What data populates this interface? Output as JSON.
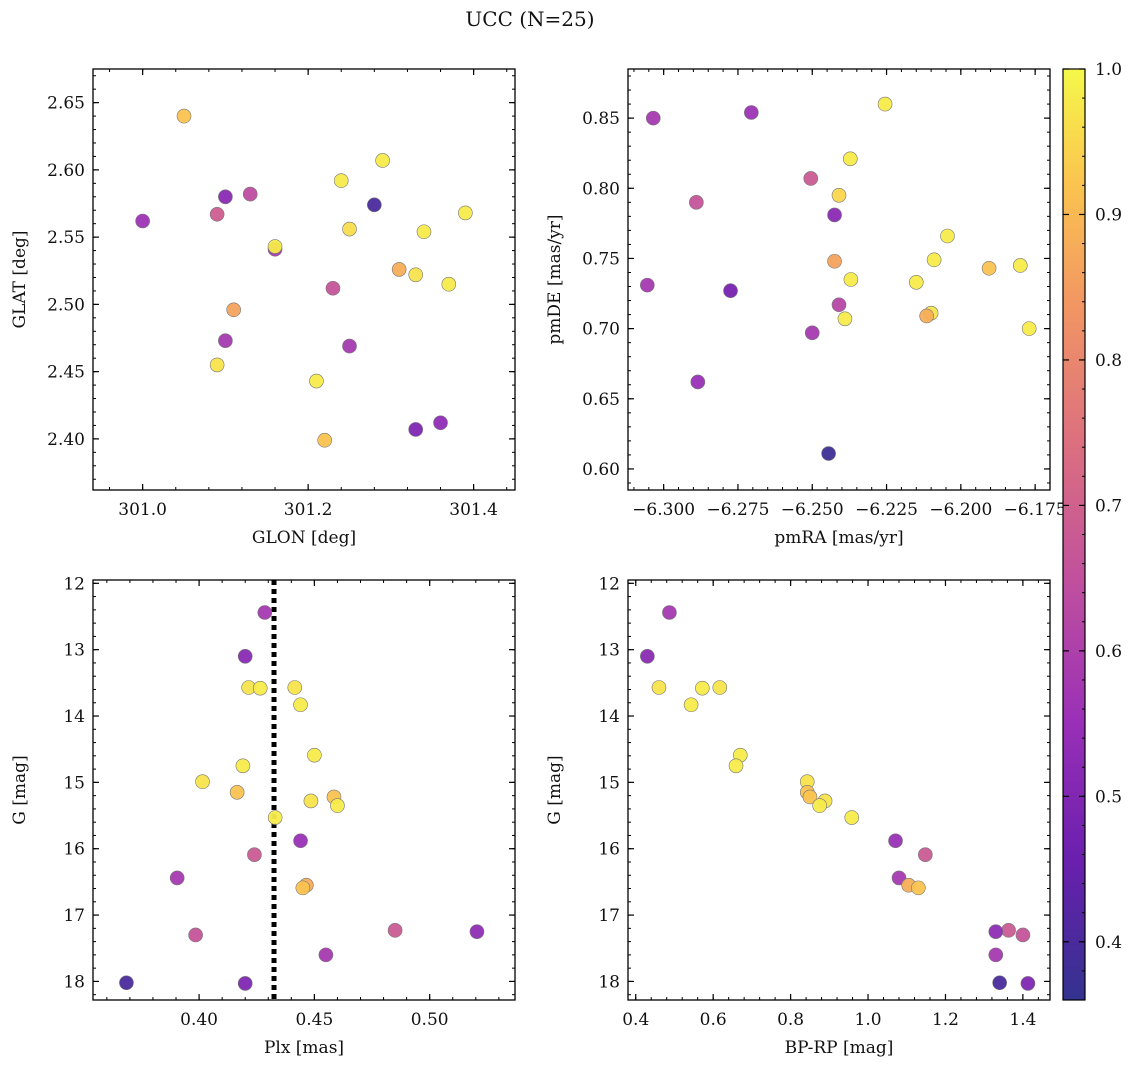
{
  "figure": {
    "title": "UCC (N=25)"
  },
  "colorbar": {
    "range": [
      0.36,
      1.0
    ],
    "ticks": [
      0.4,
      0.5,
      0.6,
      0.7,
      0.8,
      0.9,
      1.0
    ],
    "tick_labels": [
      "0.4",
      "0.5",
      "0.6",
      "0.7",
      "0.8",
      "0.9",
      "1.0"
    ],
    "colormap": "plasma"
  },
  "chart_data": [
    {
      "type": "scatter",
      "id": "glon-glat",
      "xlabel": "GLON [deg]",
      "ylabel": "GLAT [deg]",
      "xlim": [
        300.94,
        301.45
      ],
      "ylim": [
        2.362,
        2.675
      ],
      "xticks": [
        301.0,
        301.2,
        301.4
      ],
      "xtick_labels": [
        "301.0",
        "301.2",
        "301.4"
      ],
      "yticks": [
        2.4,
        2.45,
        2.5,
        2.55,
        2.6,
        2.65
      ],
      "ytick_labels": [
        "2.40",
        "2.45",
        "2.50",
        "2.55",
        "2.60",
        "2.65"
      ],
      "points": [
        {
          "x": 301.05,
          "y": 2.64,
          "c": 0.92
        },
        {
          "x": 301.0,
          "y": 2.562,
          "c": 0.56
        },
        {
          "x": 301.09,
          "y": 2.567,
          "c": 0.69
        },
        {
          "x": 301.1,
          "y": 2.58,
          "c": 0.52
        },
        {
          "x": 301.13,
          "y": 2.582,
          "c": 0.64
        },
        {
          "x": 301.16,
          "y": 2.541,
          "c": 0.58
        },
        {
          "x": 301.16,
          "y": 2.543,
          "c": 0.98
        },
        {
          "x": 301.11,
          "y": 2.496,
          "c": 0.86
        },
        {
          "x": 301.1,
          "y": 2.473,
          "c": 0.58
        },
        {
          "x": 301.09,
          "y": 2.455,
          "c": 0.97
        },
        {
          "x": 301.21,
          "y": 2.443,
          "c": 0.98
        },
        {
          "x": 301.23,
          "y": 2.512,
          "c": 0.66
        },
        {
          "x": 301.22,
          "y": 2.399,
          "c": 0.92
        },
        {
          "x": 301.25,
          "y": 2.469,
          "c": 0.58
        },
        {
          "x": 301.24,
          "y": 2.592,
          "c": 0.98
        },
        {
          "x": 301.25,
          "y": 2.556,
          "c": 0.96
        },
        {
          "x": 301.28,
          "y": 2.574,
          "c": 0.4
        },
        {
          "x": 301.29,
          "y": 2.607,
          "c": 0.98
        },
        {
          "x": 301.31,
          "y": 2.526,
          "c": 0.88
        },
        {
          "x": 301.33,
          "y": 2.522,
          "c": 0.97
        },
        {
          "x": 301.34,
          "y": 2.554,
          "c": 0.98
        },
        {
          "x": 301.33,
          "y": 2.407,
          "c": 0.5
        },
        {
          "x": 301.36,
          "y": 2.412,
          "c": 0.53
        },
        {
          "x": 301.37,
          "y": 2.515,
          "c": 0.98
        },
        {
          "x": 301.39,
          "y": 2.568,
          "c": 0.98
        }
      ]
    },
    {
      "type": "scatter",
      "id": "pmra-pmde",
      "xlabel": "pmRA [mas/yr]",
      "ylabel": "pmDE [mas/yr]",
      "xlim": [
        -6.312,
        -6.17
      ],
      "ylim": [
        0.585,
        0.885
      ],
      "xticks": [
        -6.3,
        -6.275,
        -6.25,
        -6.225,
        -6.2,
        -6.175
      ],
      "xtick_labels": [
        "−6.300",
        "−6.275",
        "−6.250",
        "−6.225",
        "−6.200",
        "−6.175"
      ],
      "yticks": [
        0.6,
        0.65,
        0.7,
        0.75,
        0.8,
        0.85
      ],
      "ytick_labels": [
        "0.60",
        "0.65",
        "0.70",
        "0.75",
        "0.80",
        "0.85"
      ],
      "points": [
        {
          "x": -6.3035,
          "y": 0.85,
          "c": 0.58
        },
        {
          "x": -6.2705,
          "y": 0.854,
          "c": 0.56
        },
        {
          "x": -6.2255,
          "y": 0.86,
          "c": 0.98
        },
        {
          "x": -6.2505,
          "y": 0.807,
          "c": 0.68
        },
        {
          "x": -6.289,
          "y": 0.79,
          "c": 0.66
        },
        {
          "x": -6.2372,
          "y": 0.821,
          "c": 0.98
        },
        {
          "x": -6.241,
          "y": 0.795,
          "c": 0.95
        },
        {
          "x": -6.2425,
          "y": 0.781,
          "c": 0.52
        },
        {
          "x": -6.2045,
          "y": 0.766,
          "c": 0.98
        },
        {
          "x": -6.3055,
          "y": 0.731,
          "c": 0.58
        },
        {
          "x": -6.2775,
          "y": 0.727,
          "c": 0.48
        },
        {
          "x": -6.2425,
          "y": 0.748,
          "c": 0.86
        },
        {
          "x": -6.237,
          "y": 0.735,
          "c": 0.98
        },
        {
          "x": -6.209,
          "y": 0.749,
          "c": 0.98
        },
        {
          "x": -6.215,
          "y": 0.733,
          "c": 0.98
        },
        {
          "x": -6.1905,
          "y": 0.743,
          "c": 0.92
        },
        {
          "x": -6.18,
          "y": 0.745,
          "c": 0.98
        },
        {
          "x": -6.241,
          "y": 0.717,
          "c": 0.62
        },
        {
          "x": -6.25,
          "y": 0.697,
          "c": 0.58
        },
        {
          "x": -6.21,
          "y": 0.711,
          "c": 0.97
        },
        {
          "x": -6.2115,
          "y": 0.709,
          "c": 0.88
        },
        {
          "x": -6.239,
          "y": 0.707,
          "c": 0.98
        },
        {
          "x": -6.177,
          "y": 0.7,
          "c": 0.98
        },
        {
          "x": -6.2885,
          "y": 0.662,
          "c": 0.55
        },
        {
          "x": -6.2445,
          "y": 0.611,
          "c": 0.38
        }
      ]
    },
    {
      "type": "scatter",
      "id": "plx-g",
      "xlabel": "Plx [mas]",
      "ylabel": "G [mag]",
      "xlim": [
        0.354,
        0.537
      ],
      "ylim": [
        18.28,
        11.95
      ],
      "y_inverted": true,
      "xticks": [
        0.4,
        0.45,
        0.5
      ],
      "xtick_labels": [
        "0.40",
        "0.45",
        "0.50"
      ],
      "yticks": [
        12,
        13,
        14,
        15,
        16,
        17,
        18
      ],
      "ytick_labels": [
        "12",
        "13",
        "14",
        "15",
        "16",
        "17",
        "18"
      ],
      "vline": 0.4325,
      "points": [
        {
          "x": 0.4285,
          "y": 12.44,
          "c": 0.58
        },
        {
          "x": 0.42,
          "y": 13.1,
          "c": 0.52
        },
        {
          "x": 0.4215,
          "y": 13.57,
          "c": 0.97
        },
        {
          "x": 0.4265,
          "y": 13.58,
          "c": 0.98
        },
        {
          "x": 0.4415,
          "y": 13.57,
          "c": 0.97
        },
        {
          "x": 0.444,
          "y": 13.83,
          "c": 0.98
        },
        {
          "x": 0.45,
          "y": 14.59,
          "c": 0.98
        },
        {
          "x": 0.419,
          "y": 14.75,
          "c": 0.98
        },
        {
          "x": 0.4015,
          "y": 14.99,
          "c": 0.97
        },
        {
          "x": 0.4165,
          "y": 15.15,
          "c": 0.92
        },
        {
          "x": 0.4585,
          "y": 15.22,
          "c": 0.92
        },
        {
          "x": 0.4485,
          "y": 15.28,
          "c": 0.97
        },
        {
          "x": 0.46,
          "y": 15.35,
          "c": 0.98
        },
        {
          "x": 0.433,
          "y": 15.53,
          "c": 0.98
        },
        {
          "x": 0.444,
          "y": 15.88,
          "c": 0.55
        },
        {
          "x": 0.424,
          "y": 16.09,
          "c": 0.68
        },
        {
          "x": 0.3905,
          "y": 16.44,
          "c": 0.58
        },
        {
          "x": 0.4465,
          "y": 16.55,
          "c": 0.88
        },
        {
          "x": 0.445,
          "y": 16.59,
          "c": 0.92
        },
        {
          "x": 0.485,
          "y": 17.23,
          "c": 0.68
        },
        {
          "x": 0.5205,
          "y": 17.25,
          "c": 0.53
        },
        {
          "x": 0.3985,
          "y": 17.3,
          "c": 0.66
        },
        {
          "x": 0.455,
          "y": 17.6,
          "c": 0.58
        },
        {
          "x": 0.3685,
          "y": 18.02,
          "c": 0.4
        },
        {
          "x": 0.42,
          "y": 18.03,
          "c": 0.5
        }
      ]
    },
    {
      "type": "scatter",
      "id": "bprp-g",
      "xlabel": "BP-RP [mag]",
      "ylabel": "G [mag]",
      "xlim": [
        0.38,
        1.47
      ],
      "ylim": [
        18.28,
        11.95
      ],
      "y_inverted": true,
      "xticks": [
        0.4,
        0.6,
        0.8,
        1.0,
        1.2,
        1.4
      ],
      "xtick_labels": [
        "0.4",
        "0.6",
        "0.8",
        "1.0",
        "1.2",
        "1.4"
      ],
      "yticks": [
        12,
        13,
        14,
        15,
        16,
        17,
        18
      ],
      "ytick_labels": [
        "12",
        "13",
        "14",
        "15",
        "16",
        "17",
        "18"
      ],
      "points": [
        {
          "x": 0.487,
          "y": 12.44,
          "c": 0.58
        },
        {
          "x": 0.43,
          "y": 13.1,
          "c": 0.52
        },
        {
          "x": 0.46,
          "y": 13.57,
          "c": 0.97
        },
        {
          "x": 0.572,
          "y": 13.58,
          "c": 0.98
        },
        {
          "x": 0.617,
          "y": 13.57,
          "c": 0.97
        },
        {
          "x": 0.543,
          "y": 13.83,
          "c": 0.98
        },
        {
          "x": 0.67,
          "y": 14.59,
          "c": 0.98
        },
        {
          "x": 0.659,
          "y": 14.75,
          "c": 0.98
        },
        {
          "x": 0.843,
          "y": 14.99,
          "c": 0.97
        },
        {
          "x": 0.843,
          "y": 15.15,
          "c": 0.92
        },
        {
          "x": 0.85,
          "y": 15.22,
          "c": 0.92
        },
        {
          "x": 0.889,
          "y": 15.28,
          "c": 0.97
        },
        {
          "x": 0.875,
          "y": 15.35,
          "c": 0.98
        },
        {
          "x": 0.958,
          "y": 15.53,
          "c": 0.98
        },
        {
          "x": 1.071,
          "y": 15.88,
          "c": 0.55
        },
        {
          "x": 1.148,
          "y": 16.09,
          "c": 0.68
        },
        {
          "x": 1.08,
          "y": 16.44,
          "c": 0.58
        },
        {
          "x": 1.105,
          "y": 16.55,
          "c": 0.88
        },
        {
          "x": 1.13,
          "y": 16.59,
          "c": 0.92
        },
        {
          "x": 1.363,
          "y": 17.23,
          "c": 0.68
        },
        {
          "x": 1.33,
          "y": 17.25,
          "c": 0.53
        },
        {
          "x": 1.4,
          "y": 17.3,
          "c": 0.66
        },
        {
          "x": 1.33,
          "y": 17.6,
          "c": 0.58
        },
        {
          "x": 1.34,
          "y": 18.02,
          "c": 0.4
        },
        {
          "x": 1.413,
          "y": 18.03,
          "c": 0.5
        }
      ]
    }
  ]
}
